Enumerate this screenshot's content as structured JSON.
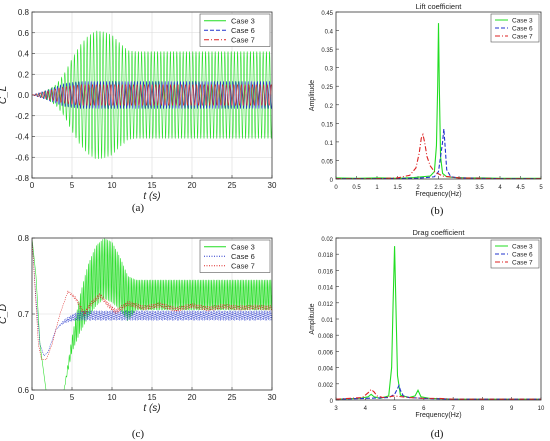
{
  "panels": {
    "a": {
      "caption": "(a)"
    },
    "b": {
      "caption": "(b)"
    },
    "c": {
      "caption": "(c)"
    },
    "d": {
      "caption": "(d)"
    }
  },
  "colors": {
    "case3": "#22dd22",
    "case6": "#2233cc",
    "case7": "#dd2222"
  },
  "chart_data": [
    {
      "id": "a",
      "type": "line",
      "title": "",
      "xlabel": "t (s)",
      "ylabel": "C_L",
      "xlim": [
        0,
        30
      ],
      "ylim": [
        -0.8,
        0.8
      ],
      "xticks": [
        "0",
        "5",
        "10",
        "15",
        "20",
        "25",
        "30"
      ],
      "yticks": [
        "-0.8",
        "-0.6",
        "-0.4",
        "-0.2",
        "0.0",
        "0.2",
        "0.4",
        "0.6",
        "0.8"
      ],
      "grid": true,
      "legend_position": "top-right",
      "series": [
        {
          "name": "Case 3",
          "style": "solid",
          "freq_hz": 2.5,
          "envelope": {
            "t": [
              0,
              1,
              2,
              3,
              4,
              5,
              6,
              7,
              8,
              9,
              10,
              11,
              12,
              13,
              30
            ],
            "amp": [
              0,
              0.02,
              0.05,
              0.1,
              0.2,
              0.35,
              0.48,
              0.57,
              0.62,
              0.61,
              0.58,
              0.5,
              0.43,
              0.42,
              0.42
            ]
          }
        },
        {
          "name": "Case 6",
          "style": "dashed",
          "freq_hz": 2.6,
          "envelope": {
            "t": [
              0,
              2,
              4,
              6,
              8,
              30
            ],
            "amp": [
              0,
              0.05,
              0.11,
              0.13,
              0.13,
              0.13
            ]
          }
        },
        {
          "name": "Case 7",
          "style": "dashdot",
          "freq_hz": 2.15,
          "envelope": {
            "t": [
              0,
              2,
              4,
              6,
              8,
              30
            ],
            "amp": [
              0,
              0.04,
              0.08,
              0.1,
              0.1,
              0.1
            ]
          }
        }
      ]
    },
    {
      "id": "b",
      "type": "line",
      "title": "Lift coefficient",
      "xlabel": "Frequency(Hz)",
      "ylabel": "Amplitude",
      "xlim": [
        0,
        5
      ],
      "ylim": [
        0,
        0.45
      ],
      "xticks": [
        "0",
        "0.5",
        "1",
        "1.5",
        "2",
        "2.5",
        "3",
        "3.5",
        "4",
        "4.5",
        "5"
      ],
      "yticks": [
        "0",
        "0.05",
        "0.1",
        "0.15",
        "0.2",
        "0.25",
        "0.3",
        "0.35",
        "0.4",
        "0.45"
      ],
      "grid": false,
      "legend_position": "top-right",
      "series": [
        {
          "name": "Case 3",
          "style": "solid",
          "x": [
            0,
            0.5,
            1,
            1.5,
            1.9,
            2.3,
            2.4,
            2.45,
            2.48,
            2.5,
            2.52,
            2.55,
            2.6,
            2.7,
            2.9,
            3.2,
            3.6,
            4,
            4.5,
            5
          ],
          "y": [
            0.003,
            0.002,
            0.003,
            0.002,
            0.004,
            0.008,
            0.02,
            0.09,
            0.25,
            0.42,
            0.25,
            0.06,
            0.015,
            0.006,
            0.004,
            0.003,
            0.003,
            0.002,
            0.002,
            0.002
          ]
        },
        {
          "name": "Case 6",
          "style": "dashed",
          "x": [
            0,
            1,
            2,
            2.4,
            2.5,
            2.55,
            2.6,
            2.63,
            2.66,
            2.7,
            2.8,
            3,
            4,
            5
          ],
          "y": [
            0.001,
            0.001,
            0.002,
            0.006,
            0.02,
            0.06,
            0.1,
            0.135,
            0.09,
            0.025,
            0.006,
            0.003,
            0.001,
            0.001
          ]
        },
        {
          "name": "Case 7",
          "style": "dashdot",
          "x": [
            0,
            1,
            1.5,
            1.8,
            1.95,
            2.03,
            2.08,
            2.12,
            2.16,
            2.22,
            2.3,
            2.4,
            2.6,
            3,
            4,
            5
          ],
          "y": [
            0.001,
            0.001,
            0.003,
            0.01,
            0.03,
            0.07,
            0.11,
            0.12,
            0.1,
            0.06,
            0.035,
            0.02,
            0.008,
            0.003,
            0.001,
            0.001
          ]
        }
      ]
    },
    {
      "id": "c",
      "type": "line",
      "title": "",
      "xlabel": "t (s)",
      "ylabel": "C_D",
      "xlim": [
        0,
        30
      ],
      "ylim": [
        0.6,
        0.8
      ],
      "xticks": [
        "0",
        "5",
        "10",
        "15",
        "20",
        "25",
        "30"
      ],
      "yticks": [
        "0.6",
        "0.7",
        "0.8"
      ],
      "grid": true,
      "legend_position": "top-right",
      "series": [
        {
          "name": "Case 3",
          "style": "solid",
          "freq_hz": 5.0,
          "mean": {
            "t": [
              0,
              0.5,
              1,
              2,
              3,
              4,
              5,
              6,
              7,
              8,
              9,
              10,
              11,
              12,
              13,
              30
            ],
            "v": [
              0.8,
              0.75,
              0.66,
              0.58,
              0.57,
              0.6,
              0.66,
              0.7,
              0.73,
              0.75,
              0.76,
              0.755,
              0.74,
              0.72,
              0.725,
              0.725
            ]
          },
          "amp": {
            "t": [
              0,
              4,
              5,
              6,
              7,
              8,
              10,
              12,
              13,
              30
            ],
            "v": [
              0,
              0,
              0.01,
              0.025,
              0.035,
              0.04,
              0.04,
              0.03,
              0.02,
              0.02
            ]
          }
        },
        {
          "name": "Case 6",
          "style": "dotted",
          "freq_hz": 5.0,
          "mean": {
            "t": [
              0,
              0.5,
              1,
              1.5,
              2,
              3,
              4,
              5,
              6,
              30
            ],
            "v": [
              0.8,
              0.72,
              0.66,
              0.645,
              0.65,
              0.68,
              0.69,
              0.695,
              0.698,
              0.698
            ]
          },
          "amp": {
            "t": [
              0,
              3,
              5,
              6,
              30
            ],
            "v": [
              0,
              0,
              0.004,
              0.006,
              0.006
            ]
          }
        },
        {
          "name": "Case 7",
          "style": "dotted",
          "freq_hz": 4.3,
          "mean": {
            "t": [
              0,
              0.4,
              0.8,
              1.2,
              1.8,
              2.5,
              3.5,
              4.5,
              5.5,
              6.5,
              7.5,
              8.5,
              9.5,
              10.5,
              12,
              14,
              16,
              18,
              20,
              22,
              24,
              26,
              28,
              30
            ],
            "v": [
              0.8,
              0.73,
              0.66,
              0.64,
              0.64,
              0.66,
              0.7,
              0.73,
              0.72,
              0.7,
              0.715,
              0.725,
              0.712,
              0.703,
              0.714,
              0.708,
              0.712,
              0.706,
              0.711,
              0.707,
              0.71,
              0.708,
              0.709,
              0.708
            ]
          },
          "amp": {
            "t": [
              0,
              4,
              6,
              30
            ],
            "v": [
              0,
              0,
              0.003,
              0.003
            ]
          }
        }
      ]
    },
    {
      "id": "d",
      "type": "line",
      "title": "Drag coefficient",
      "xlabel": "Frequency(Hz)",
      "ylabel": "Amplitude",
      "xlim": [
        3,
        10
      ],
      "ylim": [
        0,
        0.02
      ],
      "xticks": [
        "3",
        "4",
        "5",
        "6",
        "7",
        "8",
        "9",
        "10"
      ],
      "yticks": [
        "0",
        "0.002",
        "0.004",
        "0.006",
        "0.008",
        "0.01",
        "0.012",
        "0.014",
        "0.016",
        "0.018",
        "0.02"
      ],
      "grid": false,
      "legend_position": "top-right",
      "series": [
        {
          "name": "Case 3",
          "style": "solid",
          "x": [
            3,
            3.8,
            4.1,
            4.2,
            4.3,
            4.5,
            4.8,
            4.9,
            4.95,
            5,
            5.05,
            5.1,
            5.2,
            5.5,
            5.7,
            5.8,
            5.9,
            6.2,
            7,
            8,
            9,
            10
          ],
          "y": [
            0.0001,
            0.0002,
            0.0004,
            0.0007,
            0.0004,
            0.0002,
            0.0005,
            0.004,
            0.012,
            0.019,
            0.011,
            0.003,
            0.0006,
            0.0003,
            0.0005,
            0.0012,
            0.0004,
            0.0002,
            0.0001,
            0.0001,
            0.0001,
            0.0001
          ]
        },
        {
          "name": "Case 6",
          "style": "dashed",
          "x": [
            3,
            4,
            4.8,
            5,
            5.1,
            5.15,
            5.2,
            5.3,
            5.5,
            6,
            7,
            8,
            9,
            10
          ],
          "y": [
            0.0001,
            0.0002,
            0.0003,
            0.0007,
            0.0014,
            0.0018,
            0.0012,
            0.0005,
            0.0003,
            0.0002,
            0.0001,
            0.0001,
            0.0001,
            0.0001
          ]
        },
        {
          "name": "Case 7",
          "style": "dashdot",
          "x": [
            3,
            3.9,
            4.1,
            4.2,
            4.3,
            4.4,
            4.6,
            5,
            5.5,
            6,
            6.5,
            7,
            8,
            9,
            10
          ],
          "y": [
            0.0001,
            0.0003,
            0.0009,
            0.0013,
            0.001,
            0.0005,
            0.0003,
            0.0005,
            0.0003,
            0.0002,
            0.0002,
            0.0001,
            0.0001,
            0.0001,
            0.0001
          ]
        }
      ]
    }
  ]
}
